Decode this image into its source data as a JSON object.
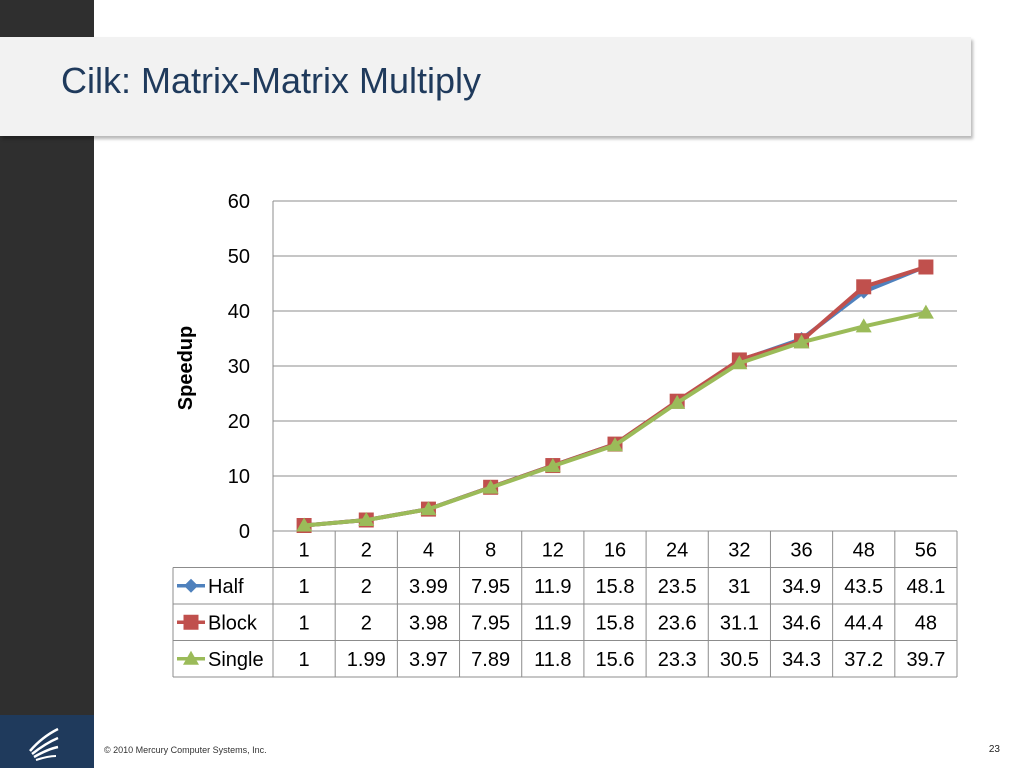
{
  "slide": {
    "title": "Cilk: Matrix-Matrix Multiply",
    "footer": "© 2010 Mercury Computer Systems, Inc.",
    "page_number": "23"
  },
  "colors": {
    "title": "#1f3a5c",
    "sidebar": "#2f2f2f",
    "logo_box": "#1f3a5c",
    "title_band": "#f2f2f2"
  },
  "chart_data": {
    "type": "line",
    "title": "",
    "xlabel": "",
    "ylabel": "Speedup",
    "ylim": [
      0,
      60
    ],
    "yticks": [
      0,
      10,
      20,
      30,
      40,
      50,
      60
    ],
    "grid": true,
    "legend": "data-table",
    "categories": [
      "1",
      "2",
      "4",
      "8",
      "12",
      "16",
      "24",
      "32",
      "36",
      "48",
      "56"
    ],
    "series": [
      {
        "name": "Half",
        "color": "#4f81bd",
        "marker": "diamond",
        "values": [
          1,
          2,
          3.99,
          7.95,
          11.9,
          15.8,
          23.5,
          31,
          34.9,
          43.5,
          48.1
        ],
        "labels": [
          "1",
          "2",
          "3.99",
          "7.95",
          "11.9",
          "15.8",
          "23.5",
          "31",
          "34.9",
          "43.5",
          "48.1"
        ]
      },
      {
        "name": "Block",
        "color": "#c0504d",
        "marker": "square",
        "values": [
          1,
          2,
          3.98,
          7.95,
          11.9,
          15.8,
          23.6,
          31.1,
          34.6,
          44.4,
          48
        ],
        "labels": [
          "1",
          "2",
          "3.98",
          "7.95",
          "11.9",
          "15.8",
          "23.6",
          "31.1",
          "34.6",
          "44.4",
          "48"
        ]
      },
      {
        "name": "Single",
        "color": "#9bbb59",
        "marker": "triangle",
        "values": [
          1,
          1.99,
          3.97,
          7.89,
          11.8,
          15.6,
          23.3,
          30.5,
          34.3,
          37.2,
          39.7
        ],
        "labels": [
          "1",
          "1.99",
          "3.97",
          "7.89",
          "11.8",
          "15.6",
          "23.3",
          "30.5",
          "34.3",
          "37.2",
          "39.7"
        ]
      }
    ]
  }
}
